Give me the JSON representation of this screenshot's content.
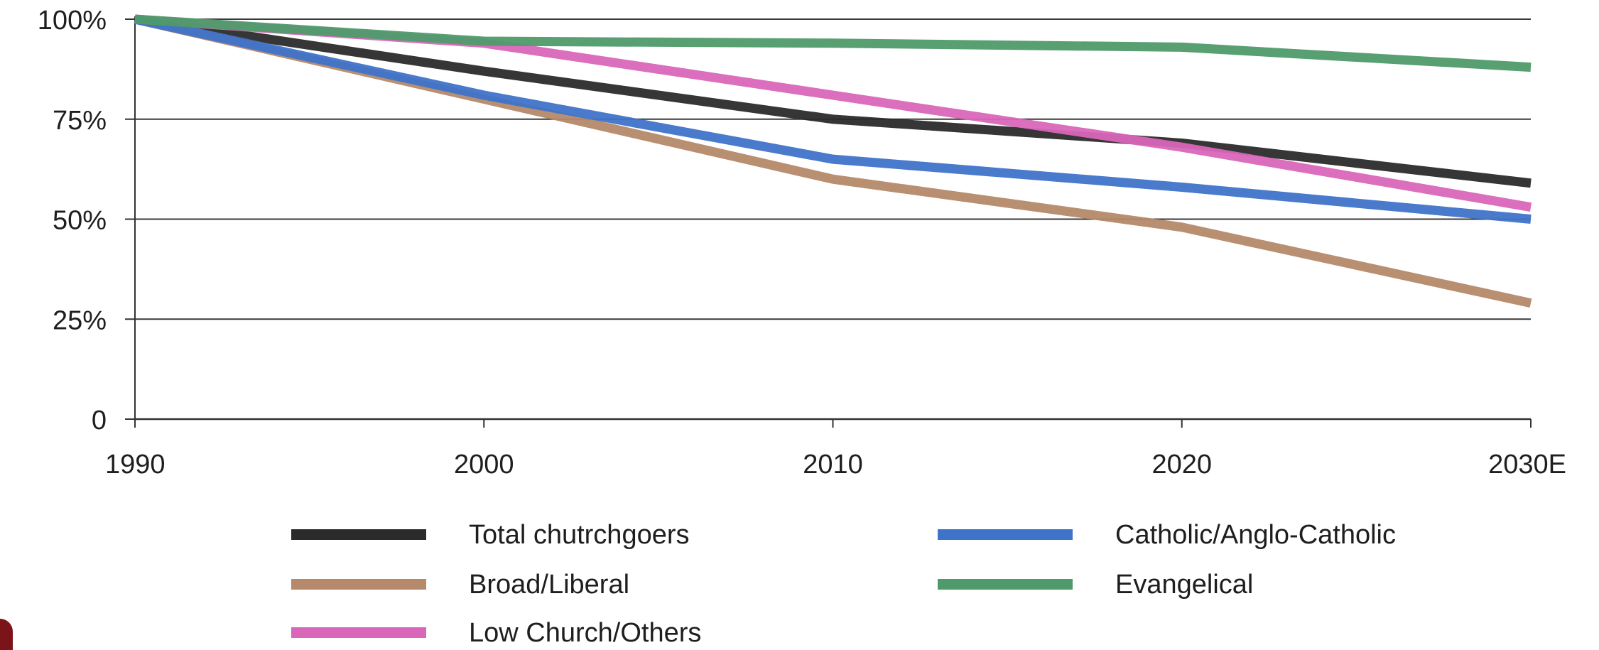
{
  "chart_data": {
    "type": "line",
    "title": "",
    "xlabel": "",
    "ylabel": "",
    "categories": [
      "1990",
      "2000",
      "2010",
      "2020",
      "2030E"
    ],
    "x": [
      1990,
      2000,
      2010,
      2020,
      2030
    ],
    "ylim": [
      0,
      100
    ],
    "yticks": [
      0,
      25,
      50,
      75,
      100
    ],
    "ytick_labels": [
      "0",
      "25%",
      "50%",
      "75%",
      "100%"
    ],
    "grid": true,
    "legend_position": "bottom",
    "series": [
      {
        "name": "Total chutrchgoers",
        "color": "#2b2b2b",
        "values": [
          100,
          87,
          75,
          69,
          59
        ]
      },
      {
        "name": "Broad/Liberal",
        "color": "#b5896a",
        "values": [
          100,
          80,
          60,
          48,
          29
        ]
      },
      {
        "name": "Low Church/Others",
        "color": "#d966b9",
        "values": [
          100,
          94,
          81,
          68,
          53
        ]
      },
      {
        "name": "Catholic/Anglo-Catholic",
        "color": "#3f73c9",
        "values": [
          100,
          81,
          65,
          58,
          50
        ]
      },
      {
        "name": "Evangelical",
        "color": "#4f9a6a",
        "values": [
          100,
          94.5,
          94,
          93,
          88
        ]
      }
    ],
    "legend_columns": [
      [
        "Total chutrchgoers",
        "Broad/Liberal",
        "Low Church/Others"
      ],
      [
        "Catholic/Anglo-Catholic",
        "Evangelical"
      ]
    ]
  },
  "colors": {
    "axis": "#333333",
    "grid": "#3a3a3a",
    "text": "#1e1e1e",
    "corner_accent": "#7a1418"
  }
}
